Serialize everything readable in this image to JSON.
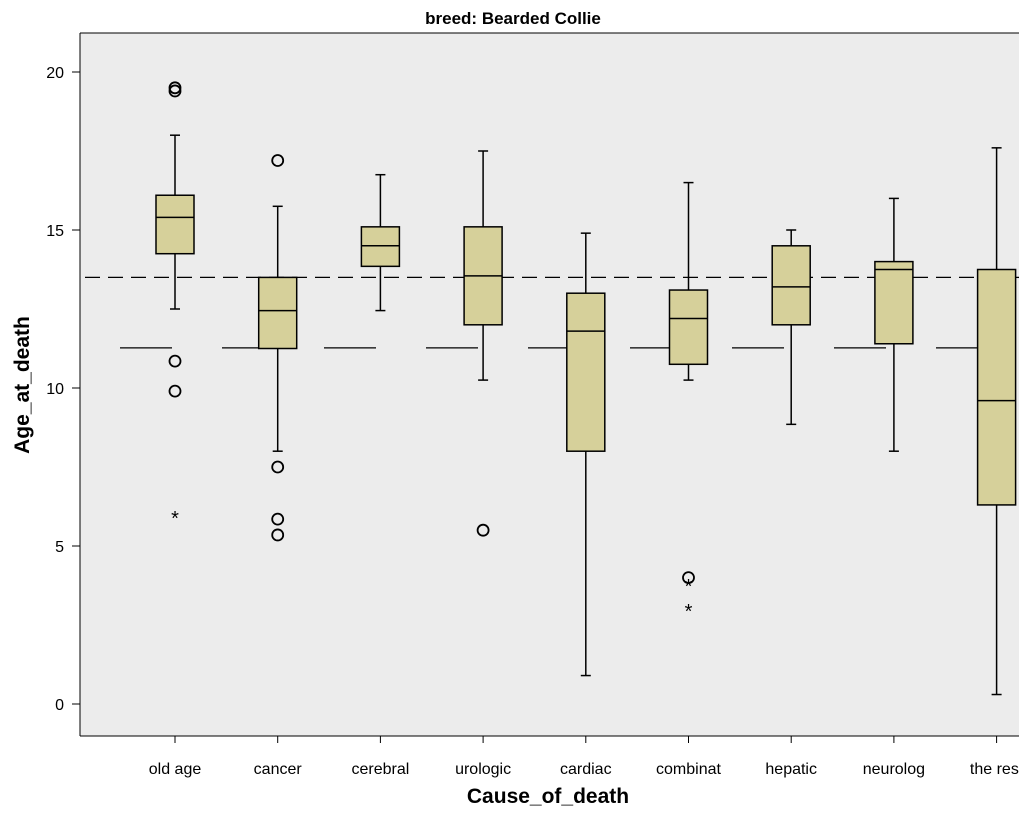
{
  "colors": {
    "plot_background": "#ececec",
    "box_fill": "#d6d09a",
    "stroke": "#000000"
  },
  "chart_data": {
    "type": "boxplot",
    "title": "breed: Bearded Collie",
    "xlabel": "Cause_of_death",
    "ylabel": "Age_at_death",
    "ylim": [
      -1,
      21
    ],
    "yticks": [
      0,
      5,
      10,
      15,
      20
    ],
    "grid": false,
    "reference_lines": [
      {
        "y": 13.5,
        "style": "dashed"
      },
      {
        "y": 11.27,
        "style": "long-dashed"
      }
    ],
    "categories": [
      "old age",
      "cancer",
      "cerebral",
      "urologic",
      "cardiac",
      "combinat",
      "hepatic",
      "neurolog",
      "the rest"
    ],
    "boxes": [
      {
        "category": "old age",
        "whisker_low": 12.5,
        "q1": 14.25,
        "median": 15.4,
        "q3": 16.1,
        "whisker_high": 18.0,
        "outliers": [
          19.5,
          19.4,
          10.85,
          9.9
        ],
        "extremes": [
          5.95
        ]
      },
      {
        "category": "cancer",
        "whisker_low": 8.0,
        "q1": 11.25,
        "median": 12.45,
        "q3": 13.5,
        "whisker_high": 15.75,
        "outliers": [
          17.2,
          7.5,
          5.85,
          5.35
        ],
        "extremes": []
      },
      {
        "category": "cerebral",
        "whisker_low": 12.45,
        "q1": 13.85,
        "median": 14.5,
        "q3": 15.1,
        "whisker_high": 16.75,
        "outliers": [],
        "extremes": []
      },
      {
        "category": "urologic",
        "whisker_low": 10.25,
        "q1": 12.0,
        "median": 13.55,
        "q3": 15.1,
        "whisker_high": 17.5,
        "outliers": [
          5.5
        ],
        "extremes": []
      },
      {
        "category": "cardiac",
        "whisker_low": 0.9,
        "q1": 8.0,
        "median": 11.8,
        "q3": 13.0,
        "whisker_high": 14.9,
        "outliers": [],
        "extremes": []
      },
      {
        "category": "combinat",
        "whisker_low": 10.25,
        "q1": 10.75,
        "median": 12.2,
        "q3": 13.1,
        "whisker_high": 16.5,
        "outliers": [
          4.0
        ],
        "extremes": [
          3.8,
          3.0
        ]
      },
      {
        "category": "hepatic",
        "whisker_low": 8.85,
        "q1": 12.0,
        "median": 13.2,
        "q3": 14.5,
        "whisker_high": 15.0,
        "outliers": [],
        "extremes": []
      },
      {
        "category": "neurolog",
        "whisker_low": 8.0,
        "q1": 11.4,
        "median": 13.75,
        "q3": 14.0,
        "whisker_high": 16.0,
        "outliers": [],
        "extremes": []
      },
      {
        "category": "the rest",
        "whisker_low": 0.3,
        "q1": 6.3,
        "median": 9.6,
        "q3": 13.75,
        "whisker_high": 17.6,
        "outliers": [],
        "extremes": []
      }
    ]
  }
}
